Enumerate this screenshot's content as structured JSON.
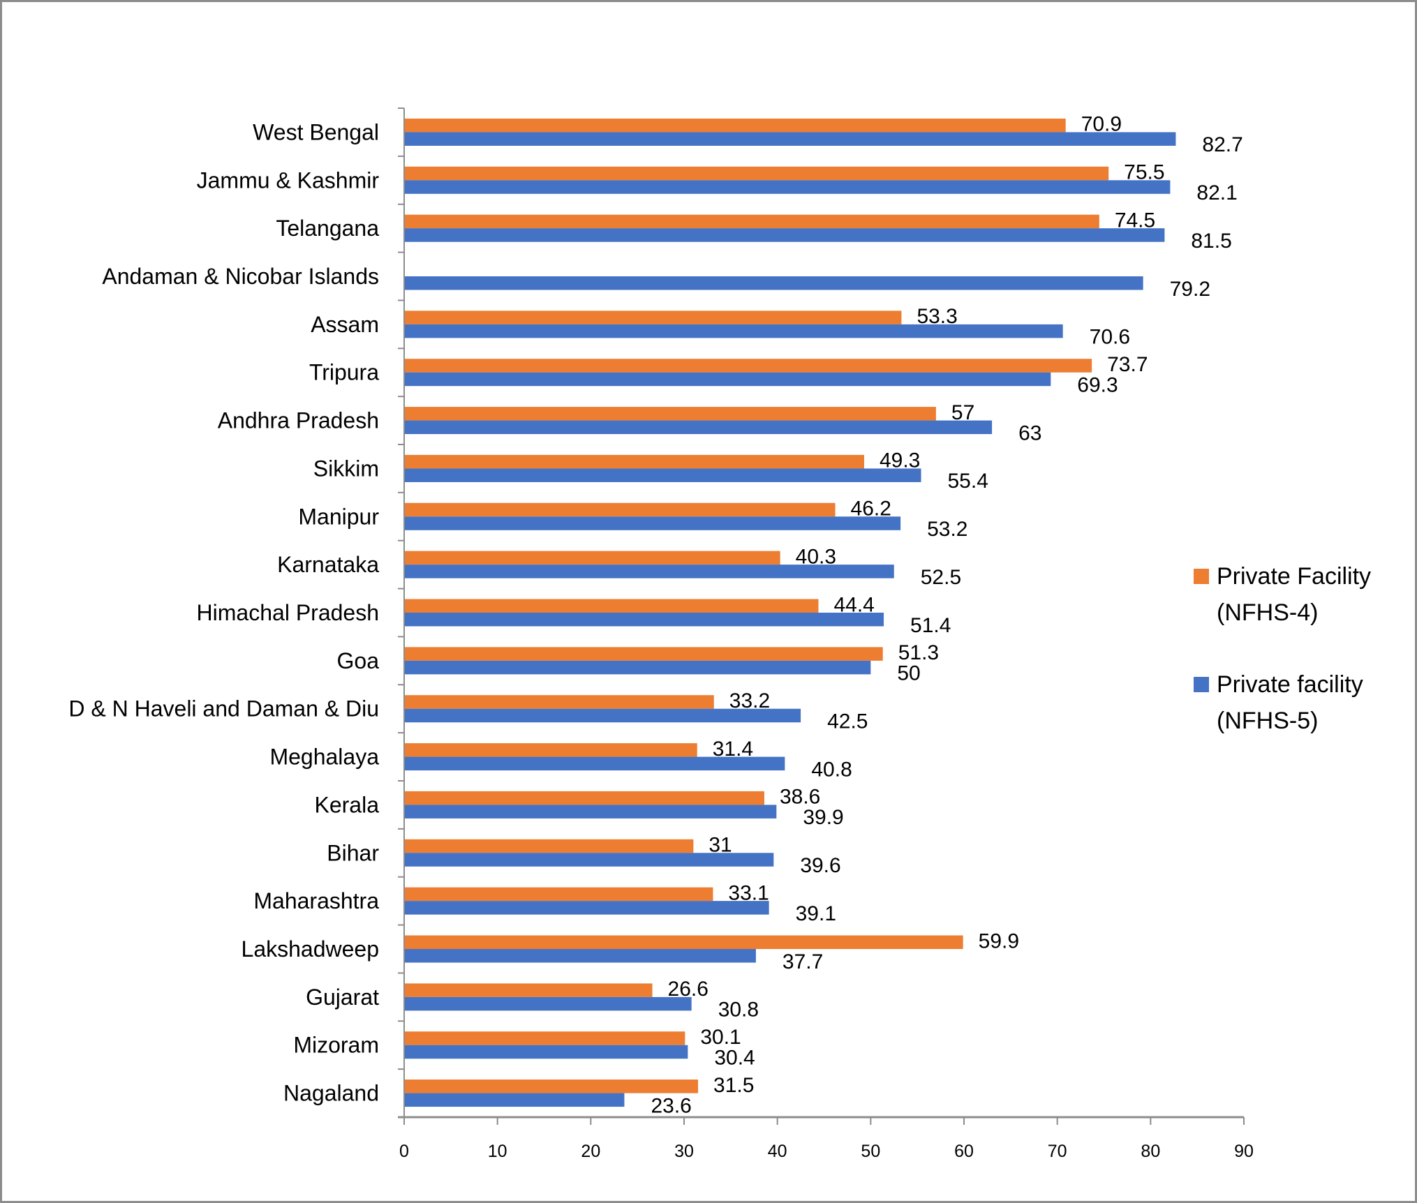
{
  "chart_data": {
    "type": "bar",
    "orientation": "horizontal",
    "title": "",
    "xlabel": "",
    "ylabel": "",
    "xlim": [
      0,
      90
    ],
    "xticks": [
      0,
      10,
      20,
      30,
      40,
      50,
      60,
      70,
      80,
      90
    ],
    "grid": false,
    "legend_position": "right",
    "categories": [
      "West Bengal",
      "Jammu & Kashmir",
      "Telangana",
      "Andaman & Nicobar Islands",
      "Assam",
      "Tripura",
      "Andhra Pradesh",
      "Sikkim",
      "Manipur",
      "Karnataka",
      "Himachal Pradesh",
      "Goa",
      "D & N Haveli and Daman & Diu",
      "Meghalaya",
      "Kerala",
      "Bihar",
      "Maharashtra",
      "Lakshadweep",
      "Gujarat",
      "Mizoram",
      "Nagaland"
    ],
    "series": [
      {
        "name": "Private Facility (NFHS-4)",
        "legend_lines": [
          "Private Facility",
          "(NFHS-4)"
        ],
        "color": "#ED7D31",
        "values": [
          70.9,
          75.5,
          74.5,
          null,
          53.3,
          73.7,
          57,
          49.3,
          46.2,
          40.3,
          44.4,
          51.3,
          33.2,
          31.4,
          38.6,
          31,
          33.1,
          59.9,
          26.6,
          30.1,
          31.5
        ],
        "labels": [
          "70.9",
          "75.5",
          "74.5",
          "",
          "53.3",
          "73.7",
          "57",
          "49.3",
          "46.2",
          "40.3",
          "44.4",
          "51.3",
          "33.2",
          "31.4",
          "38.6",
          "31",
          "33.1",
          "59.9",
          "26.6",
          "30.1",
          "31.5"
        ]
      },
      {
        "name": "Private facility (NFHS-5)",
        "legend_lines": [
          "Private facility",
          "(NFHS-5)"
        ],
        "color": "#4472C4",
        "values": [
          82.7,
          82.1,
          81.5,
          79.2,
          70.6,
          69.3,
          63,
          55.4,
          53.2,
          52.5,
          51.4,
          50,
          42.5,
          40.8,
          39.9,
          39.6,
          39.1,
          37.7,
          30.8,
          30.4,
          23.6
        ],
        "labels": [
          "82.7",
          "82.1",
          "81.5",
          "79.2",
          "70.6",
          "69.3",
          "63",
          "55.4",
          "53.2",
          "52.5",
          "51.4",
          "50",
          "42.5",
          "40.8",
          "39.9",
          "39.6",
          "39.1",
          "37.7",
          "30.8",
          "30.4",
          "23.6"
        ]
      }
    ]
  }
}
